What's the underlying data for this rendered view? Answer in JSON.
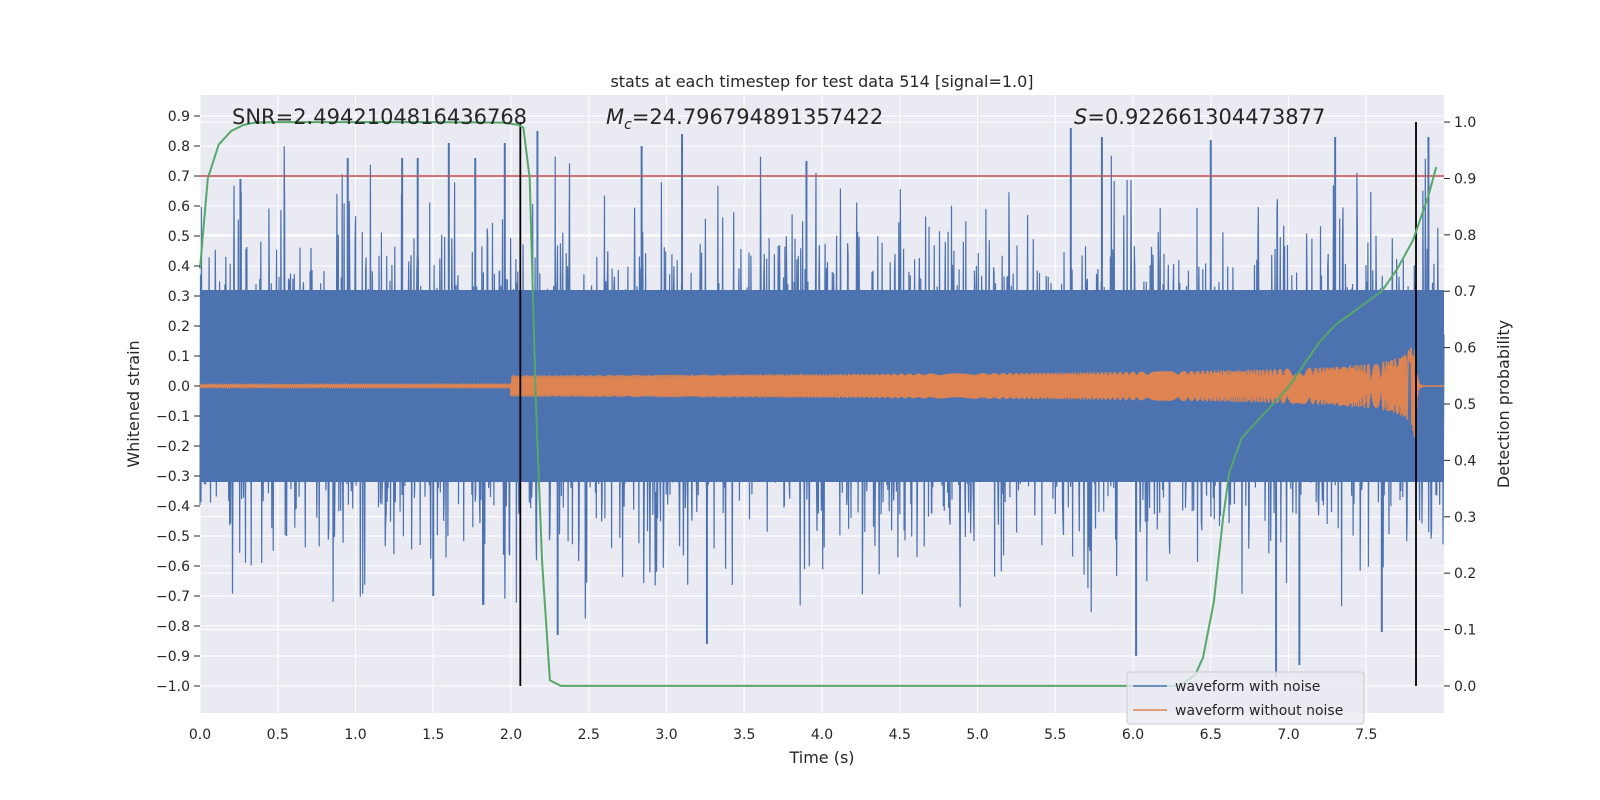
{
  "chart_data": {
    "type": "line",
    "title": "stats at each timestep for test data 514 [signal=1.0]",
    "xlabel": "Time (s)",
    "ylabel": "Whitened strain",
    "y2label": "Detection probability",
    "xlim": [
      0.0,
      8.0
    ],
    "ylim": [
      -1.09,
      0.97
    ],
    "y2lim": [
      -0.048,
      1.048
    ],
    "xticks": [
      "0.0",
      "0.5",
      "1.0",
      "1.5",
      "2.0",
      "2.5",
      "3.0",
      "3.5",
      "4.0",
      "4.5",
      "5.0",
      "5.5",
      "6.0",
      "6.5",
      "7.0",
      "7.5"
    ],
    "yticks": [
      "0.9",
      "0.8",
      "0.7",
      "0.6",
      "0.5",
      "0.4",
      "0.3",
      "0.2",
      "0.1",
      "0.0",
      "-0.1",
      "-0.2",
      "-0.3",
      "-0.4",
      "-0.5",
      "-0.6",
      "-0.7",
      "-0.8",
      "-0.9",
      "-1.0"
    ],
    "yticks_display": [
      "0.9",
      "0.8",
      "0.7",
      "0.6",
      "0.5",
      "0.4",
      "0.3",
      "0.2",
      "0.1",
      "0.0",
      "−0.1",
      "−0.2",
      "−0.3",
      "−0.4",
      "−0.5",
      "−0.6",
      "−0.7",
      "−0.8",
      "−0.9",
      "−1.0"
    ],
    "y2ticks": [
      "0.0",
      "0.1",
      "0.2",
      "0.3",
      "0.4",
      "0.5",
      "0.6",
      "0.7",
      "0.8",
      "0.9",
      "1.0"
    ],
    "annotations": {
      "snr": "SNR=2.4942104816436768",
      "mc_symbol": "M",
      "mc_sub": "c",
      "mc_value": "=24.796794891357422",
      "s_symbol": "S",
      "s_value": "=0.922661304473877"
    },
    "legend": {
      "placement": "lower-right",
      "entries": [
        "waveform with noise",
        "waveform without noise"
      ]
    },
    "series": [
      {
        "name": "waveform with noise",
        "axis": "left",
        "color": "#4c72b0",
        "kind": "noise",
        "typical_envelope": [
          -0.45,
          0.45
        ],
        "peak_max": 0.86,
        "peak_min": -1.0,
        "spikes": [
          {
            "x": 0.26,
            "y": 0.69
          },
          {
            "x": 0.95,
            "y": 0.76
          },
          {
            "x": 1.3,
            "y": 0.76
          },
          {
            "x": 1.4,
            "y": 0.76
          },
          {
            "x": 1.6,
            "y": 0.81
          },
          {
            "x": 1.77,
            "y": 0.76
          },
          {
            "x": 1.96,
            "y": 0.81
          },
          {
            "x": 2.17,
            "y": 0.85
          },
          {
            "x": 2.84,
            "y": 0.8
          },
          {
            "x": 3.1,
            "y": 0.84
          },
          {
            "x": 3.9,
            "y": 0.75
          },
          {
            "x": 5.8,
            "y": 0.83
          },
          {
            "x": 5.6,
            "y": 0.86
          },
          {
            "x": 6.5,
            "y": 0.82
          },
          {
            "x": 7.3,
            "y": 0.83
          },
          {
            "x": 7.9,
            "y": 0.83
          },
          {
            "x": 1.82,
            "y": -0.73
          },
          {
            "x": 3.26,
            "y": -0.86
          },
          {
            "x": 6.02,
            "y": -0.9
          },
          {
            "x": 6.92,
            "y": -0.97
          },
          {
            "x": 7.07,
            "y": -0.93
          },
          {
            "x": 7.6,
            "y": -0.82
          },
          {
            "x": 2.3,
            "y": -0.83
          },
          {
            "x": 1.5,
            "y": -0.7
          }
        ]
      },
      {
        "name": "waveform without noise",
        "axis": "left",
        "color": "#dd8452",
        "kind": "chirp",
        "merger_time": 7.82,
        "peak_amplitude": 0.22
      },
      {
        "name": "detection probability",
        "axis": "right",
        "color": "#55a868",
        "x": [
          0.0,
          0.05,
          0.12,
          0.2,
          0.28,
          0.35,
          0.5,
          1.0,
          1.5,
          1.95,
          2.05,
          2.08,
          2.12,
          2.16,
          2.2,
          2.25,
          2.32,
          2.4,
          3.0,
          4.0,
          5.0,
          6.0,
          6.3,
          6.4,
          6.45,
          6.52,
          6.58,
          6.62,
          6.7,
          6.8,
          6.9,
          7.0,
          7.1,
          7.2,
          7.3,
          7.4,
          7.5,
          7.6,
          7.7,
          7.8,
          7.9,
          7.95
        ],
        "y": [
          0.74,
          0.9,
          0.96,
          0.984,
          0.995,
          0.999,
          1.0,
          1.0,
          1.0,
          0.999,
          0.995,
          0.99,
          0.9,
          0.5,
          0.22,
          0.01,
          0.0,
          0.0,
          0.0,
          0.0,
          0.0,
          0.0,
          0.0,
          0.02,
          0.05,
          0.15,
          0.3,
          0.38,
          0.44,
          0.47,
          0.5,
          0.53,
          0.57,
          0.61,
          0.64,
          0.66,
          0.68,
          0.7,
          0.74,
          0.79,
          0.87,
          0.92
        ]
      }
    ],
    "horizontal_lines": [
      {
        "axis": "left",
        "y": 0.7,
        "color": "#c44e52"
      }
    ],
    "vertical_lines": [
      {
        "x": 2.06,
        "y_range": [
          -1.0,
          0.88
        ],
        "color": "#000000"
      },
      {
        "x": 7.82,
        "y_range": [
          -1.0,
          0.88
        ],
        "color": "#000000"
      }
    ]
  }
}
